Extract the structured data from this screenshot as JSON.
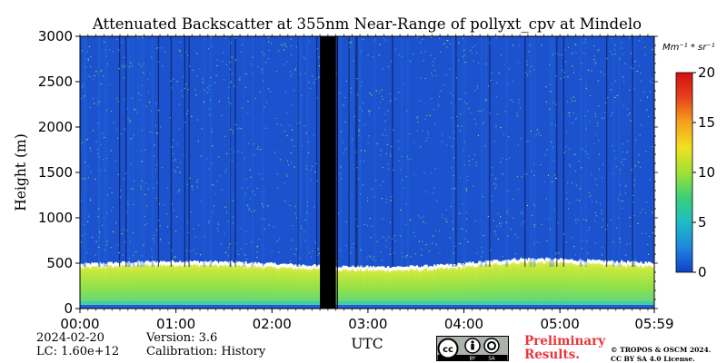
{
  "chart_data": {
    "type": "heatmap",
    "title": "Attenuated Backscatter at 355nm Near-Range of pollyxt_cpv at Mindelo",
    "xlabel": "UTC",
    "ylabel": "Height (m)",
    "x_ticks": [
      "00:00",
      "01:00",
      "02:00",
      "03:00",
      "04:00",
      "05:00",
      "05:59"
    ],
    "y_ticks": [
      0,
      500,
      1000,
      1500,
      2000,
      2500,
      3000
    ],
    "ylim": [
      0,
      3000
    ],
    "xlim": [
      "00:00",
      "05:59"
    ],
    "colorbar": {
      "unit": "Mm⁻¹ * sr⁻¹",
      "ticks": [
        0,
        5,
        10,
        15,
        20
      ],
      "range": [
        0,
        20
      ],
      "colormap": [
        "#1240c8",
        "#1d86dd",
        "#1fbcc4",
        "#3ccf79",
        "#9ee234",
        "#f2e020",
        "#f5a21c",
        "#e8421c",
        "#d40f10"
      ]
    },
    "features": {
      "aerosol_layer_top_m": 520,
      "aerosol_layer_color": "#7bd84a",
      "layer_top_color": "#ffffff",
      "background_color": "#1d52cf",
      "no_data_gap": [
        "02:30",
        "02:40"
      ]
    }
  },
  "meta": {
    "date": "2024-02-20",
    "lc": "LC: 1.60e+12",
    "version": "Version: 3.6",
    "calibration": "Calibration: History"
  },
  "badges": {
    "preliminary_line1": "Preliminary",
    "preliminary_line2": "Results.",
    "copyright_line1": "© TROPOS & OSCM 2024.",
    "copyright_line2": "CC BY SA 4.0 License.",
    "cc_icon": "cc-by-sa-icon",
    "cc_by": "BY",
    "cc_sa": "SA"
  }
}
